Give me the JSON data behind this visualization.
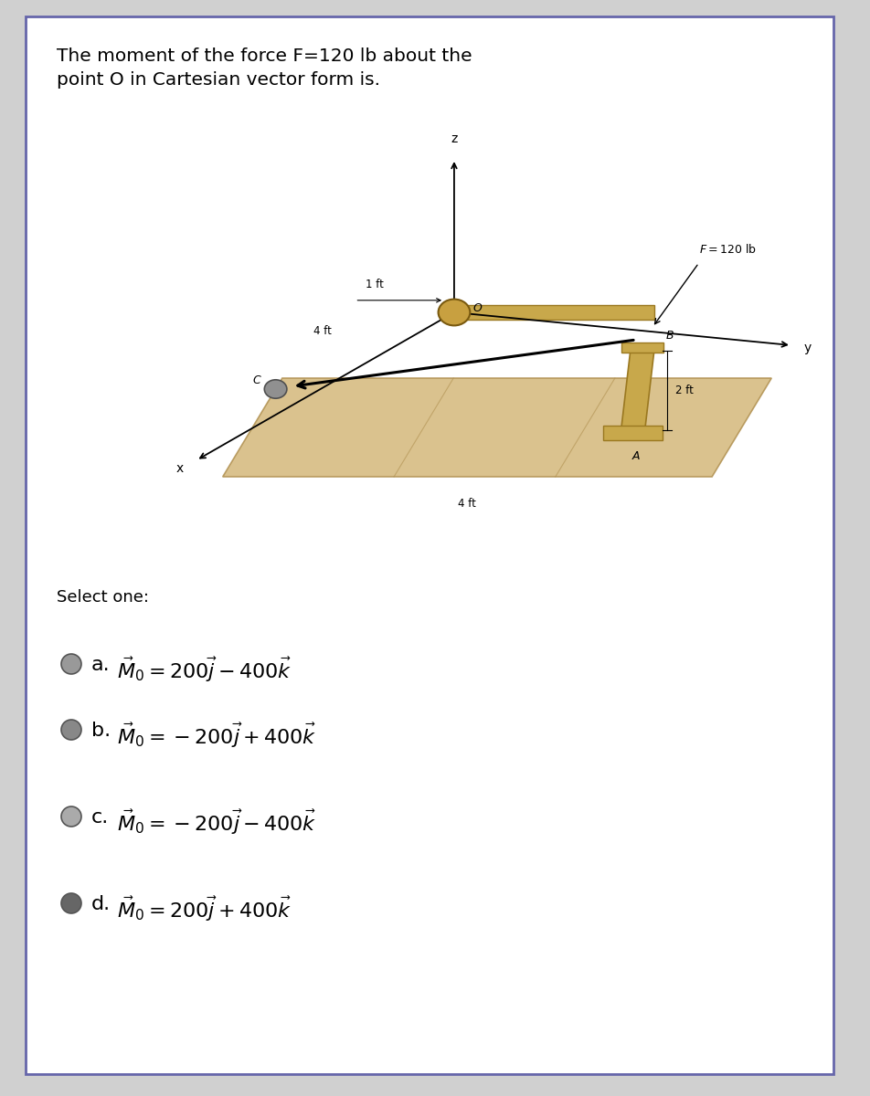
{
  "title_line1": "The moment of the force F=120 lb about the",
  "title_line2": "point O in Cartesian vector form is.",
  "bg_outer": "#d0d0d0",
  "bg_card": "#ffffff",
  "border_color": "#6666aa",
  "title_fontsize": 14.5,
  "select_one_text": "Select one:",
  "select_fontsize": 13,
  "options": [
    {
      "label": "a.",
      "math": "$\\vec{M}_0 = 200\\vec{j} - 400\\vec{k}$",
      "gray": "#999999"
    },
    {
      "label": "b.",
      "math": "$\\vec{M}_0 = -200\\vec{j} + 400\\vec{k}$",
      "gray": "#888888"
    },
    {
      "label": "c.",
      "math": "$\\vec{M}_0 = -200\\vec{j} - 400\\vec{k}$",
      "gray": "#aaaaaa"
    },
    {
      "label": "d.",
      "math": "$\\vec{M}_0 = 200\\vec{j} + 400\\vec{k}$",
      "gray": "#666666"
    }
  ],
  "opt_fontsize": 16,
  "floor_color": "#d4b87a",
  "floor_edge": "#b09050",
  "rod_color": "#c8a84b",
  "rod_edge": "#9a7820",
  "ball_O_color": "#c8a040",
  "ball_C_color": "#909090"
}
